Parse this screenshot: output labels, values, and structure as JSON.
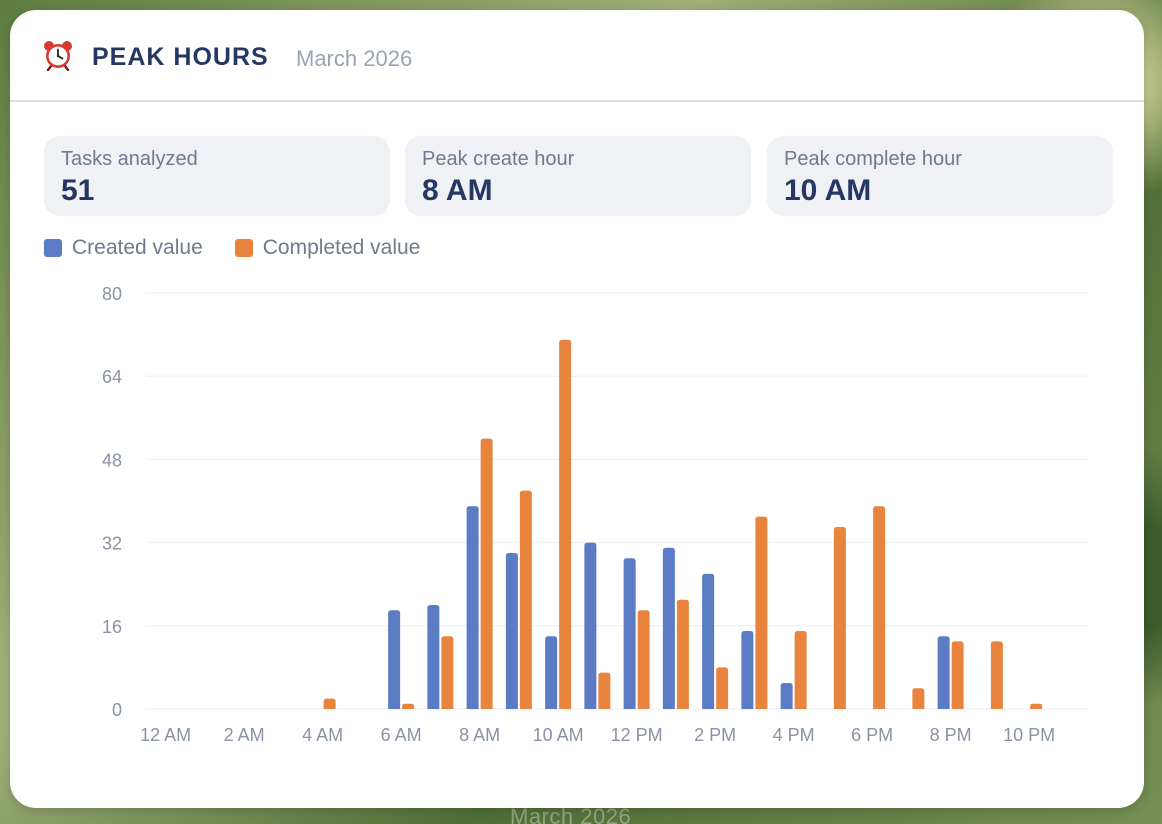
{
  "widget": {
    "title": "PEAK HOURS",
    "subtitle": "March 2026",
    "icon": "alarm-clock-icon"
  },
  "background_text": "March 2026",
  "stats": [
    {
      "label": "Tasks analyzed",
      "value": "51"
    },
    {
      "label": "Peak create hour",
      "value": "8 AM"
    },
    {
      "label": "Peak complete hour",
      "value": "10 AM"
    }
  ],
  "chart_data": {
    "type": "bar",
    "categories": [
      "12 AM",
      "1 AM",
      "2 AM",
      "3 AM",
      "4 AM",
      "5 AM",
      "6 AM",
      "7 AM",
      "8 AM",
      "9 AM",
      "10 AM",
      "11 AM",
      "12 PM",
      "1 PM",
      "2 PM",
      "3 PM",
      "4 PM",
      "5 PM",
      "6 PM",
      "7 PM",
      "8 PM",
      "9 PM",
      "10 PM",
      "11 PM"
    ],
    "x_tick_labels": [
      "12 AM",
      "2 AM",
      "4 AM",
      "6 AM",
      "8 AM",
      "10 AM",
      "12 PM",
      "2 PM",
      "4 PM",
      "6 PM",
      "8 PM",
      "10 PM"
    ],
    "y_ticks": [
      0,
      16,
      32,
      48,
      64,
      80
    ],
    "ylim": [
      0,
      80
    ],
    "grid": true,
    "legend_position": "top-left",
    "series": [
      {
        "name": "Created value",
        "color": "#5b7bc4",
        "values": [
          0,
          0,
          0,
          0,
          0,
          0,
          19,
          20,
          39,
          30,
          14,
          32,
          29,
          31,
          26,
          15,
          5,
          0,
          0,
          0,
          14,
          0,
          0,
          0
        ]
      },
      {
        "name": "Completed value",
        "color": "#e8843e",
        "values": [
          0,
          0,
          0,
          0,
          2,
          0,
          1,
          14,
          52,
          42,
          71,
          7,
          19,
          21,
          8,
          37,
          15,
          35,
          39,
          4,
          13,
          13,
          1,
          0
        ]
      }
    ]
  }
}
